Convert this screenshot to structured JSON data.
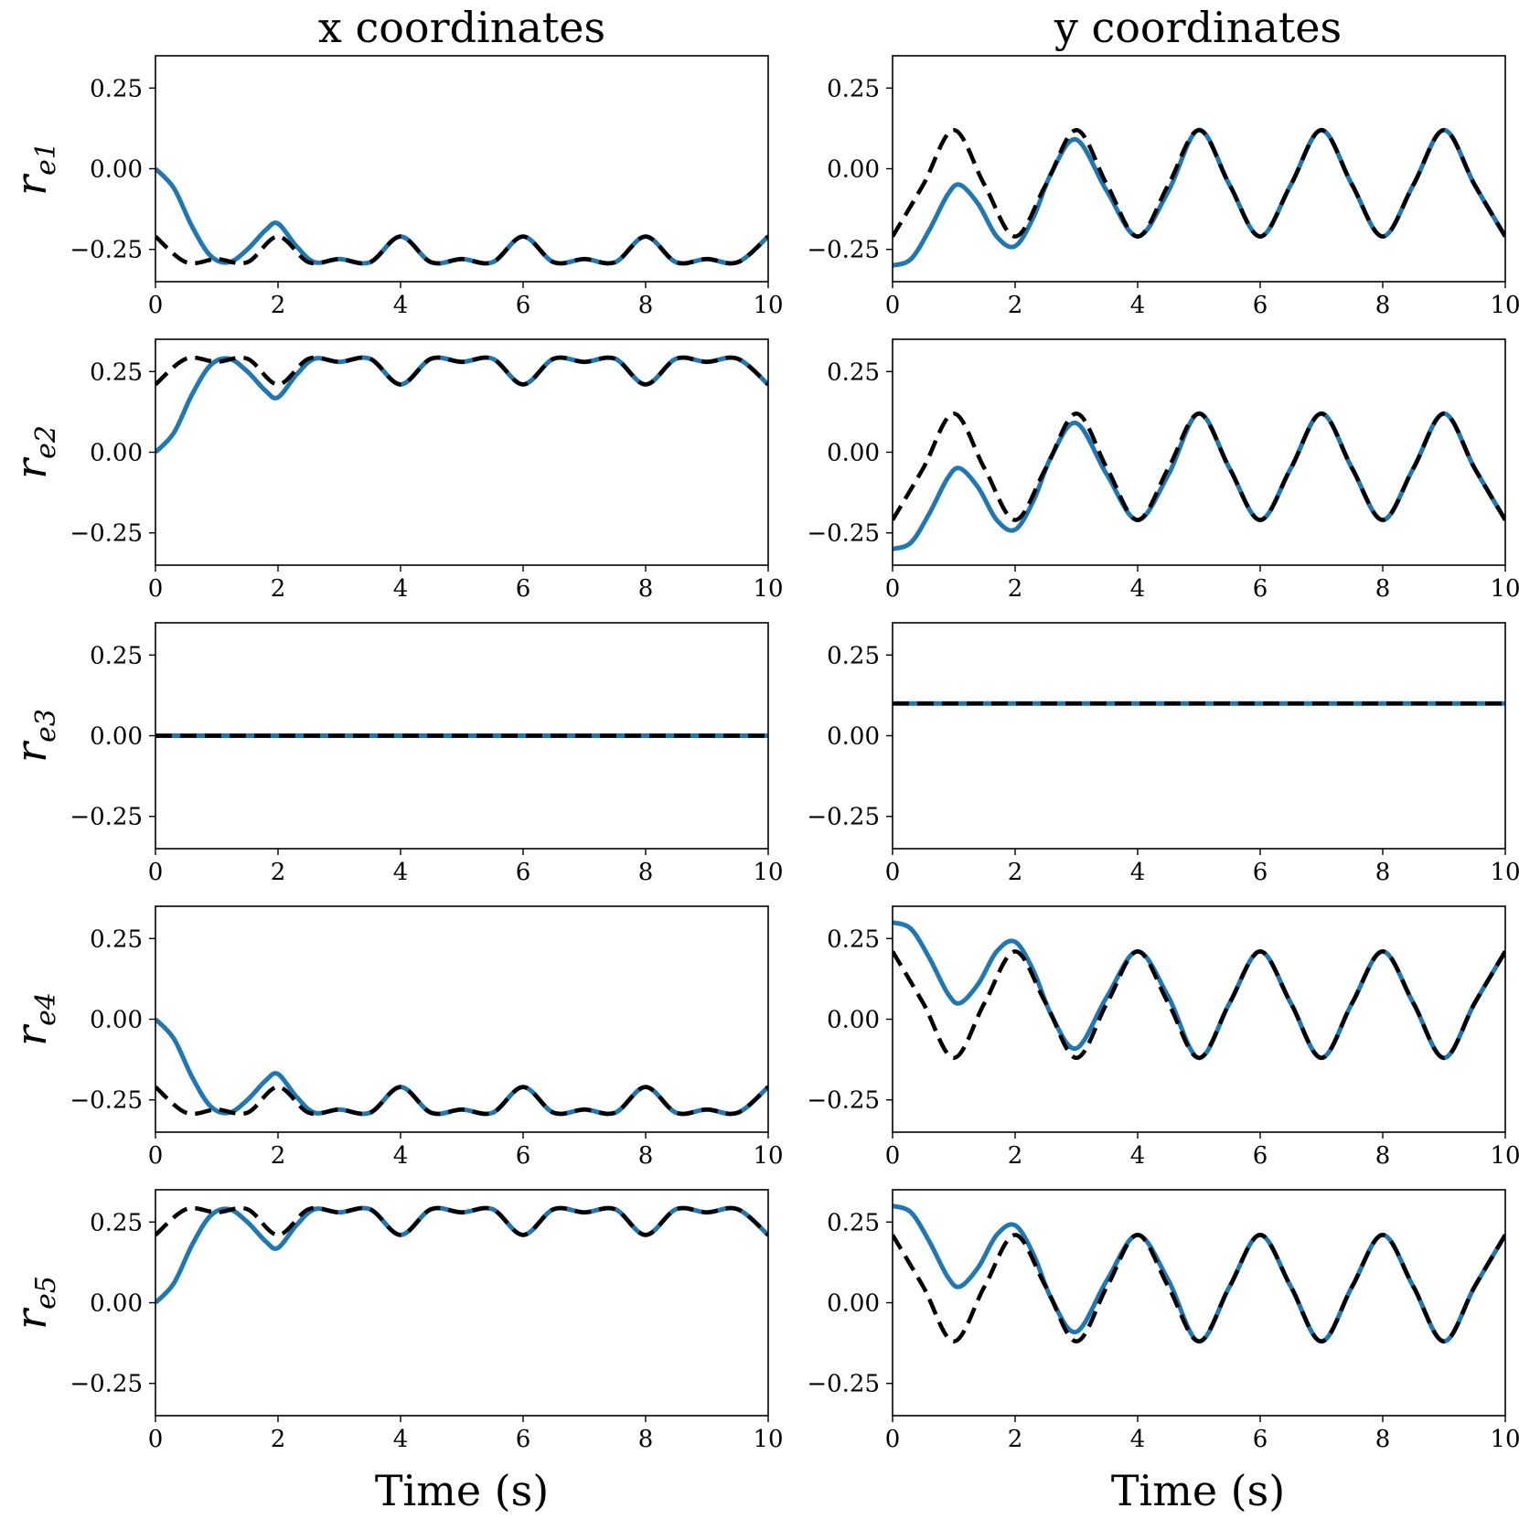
{
  "figure": {
    "column_titles": [
      "x coordinates",
      "y coordinates"
    ],
    "xlabel": "Time (s)",
    "row_labels": [
      {
        "base": "r",
        "sub": "e1"
      },
      {
        "base": "r",
        "sub": "e2"
      },
      {
        "base": "r",
        "sub": "e3"
      },
      {
        "base": "r",
        "sub": "e4"
      },
      {
        "base": "r",
        "sub": "e5"
      }
    ],
    "colors": {
      "actual": "#1f77b4",
      "reference": "#000000"
    }
  },
  "chart_data": {
    "type": "line",
    "xlim": [
      0,
      10
    ],
    "ylim": [
      -0.35,
      0.35
    ],
    "xticks": [
      0,
      2,
      4,
      6,
      8,
      10
    ],
    "yticks": [
      0.25,
      0.0,
      -0.25
    ],
    "ytick_labels": [
      "0.25",
      "0.00",
      "−0.25"
    ],
    "grid": false,
    "subplots": [
      {
        "row": "re1",
        "coord": "x",
        "actual": {
          "x": [
            0,
            0.3,
            0.6,
            0.9,
            1.2,
            1.5,
            1.8,
            2.0,
            2.3,
            2.6,
            3.0,
            3.5,
            4.0,
            4.5,
            5.0,
            5.5,
            6.0,
            6.5,
            7.0,
            7.5,
            8.0,
            8.5,
            9.0,
            9.5,
            10
          ],
          "y": [
            0.0,
            -0.06,
            -0.18,
            -0.27,
            -0.29,
            -0.25,
            -0.19,
            -0.17,
            -0.24,
            -0.29,
            -0.28,
            -0.29,
            -0.21,
            -0.29,
            -0.28,
            -0.29,
            -0.21,
            -0.29,
            -0.28,
            -0.29,
            -0.21,
            -0.29,
            -0.28,
            -0.29,
            -0.21
          ]
        },
        "reference": {
          "x": [
            0,
            0.5,
            1.0,
            1.5,
            2.0,
            2.5,
            3.0,
            3.5,
            4.0,
            4.5,
            5.0,
            5.5,
            6.0,
            6.5,
            7.0,
            7.5,
            8.0,
            8.5,
            9.0,
            9.5,
            10
          ],
          "y": [
            -0.21,
            -0.29,
            -0.28,
            -0.29,
            -0.21,
            -0.29,
            -0.28,
            -0.29,
            -0.21,
            -0.29,
            -0.28,
            -0.29,
            -0.21,
            -0.29,
            -0.28,
            -0.29,
            -0.21,
            -0.29,
            -0.28,
            -0.29,
            -0.21
          ]
        }
      },
      {
        "row": "re1",
        "coord": "y",
        "actual": {
          "x": [
            0,
            0.3,
            0.6,
            0.9,
            1.1,
            1.4,
            1.7,
            2.0,
            2.3,
            2.6,
            3.0,
            3.5,
            4.0,
            4.5,
            5.0,
            5.5,
            6.0,
            6.5,
            7.0,
            7.5,
            8.0,
            8.5,
            9.0,
            9.5,
            10
          ],
          "y": [
            -0.3,
            -0.28,
            -0.19,
            -0.08,
            -0.05,
            -0.11,
            -0.21,
            -0.24,
            -0.15,
            -0.01,
            0.09,
            -0.07,
            -0.21,
            -0.07,
            0.12,
            -0.05,
            -0.21,
            -0.05,
            0.12,
            -0.05,
            -0.21,
            -0.05,
            0.12,
            -0.05,
            -0.21
          ]
        },
        "reference": {
          "x": [
            0,
            0.5,
            1.0,
            1.5,
            2.0,
            2.5,
            3.0,
            3.5,
            4.0,
            4.5,
            5.0,
            5.5,
            6.0,
            6.5,
            7.0,
            7.5,
            8.0,
            8.5,
            9.0,
            9.5,
            10
          ],
          "y": [
            -0.21,
            -0.05,
            0.12,
            -0.05,
            -0.21,
            -0.05,
            0.12,
            -0.05,
            -0.21,
            -0.05,
            0.12,
            -0.05,
            -0.21,
            -0.05,
            0.12,
            -0.05,
            -0.21,
            -0.05,
            0.12,
            -0.05,
            -0.21
          ]
        }
      },
      {
        "row": "re2",
        "coord": "x",
        "actual": {
          "x": [
            0,
            0.3,
            0.6,
            0.9,
            1.2,
            1.5,
            1.8,
            2.0,
            2.3,
            2.6,
            3.0,
            3.5,
            4.0,
            4.5,
            5.0,
            5.5,
            6.0,
            6.5,
            7.0,
            7.5,
            8.0,
            8.5,
            9.0,
            9.5,
            10
          ],
          "y": [
            0.0,
            0.06,
            0.18,
            0.27,
            0.29,
            0.25,
            0.19,
            0.17,
            0.24,
            0.29,
            0.28,
            0.29,
            0.21,
            0.29,
            0.28,
            0.29,
            0.21,
            0.29,
            0.28,
            0.29,
            0.21,
            0.29,
            0.28,
            0.29,
            0.21
          ]
        },
        "reference": {
          "x": [
            0,
            0.5,
            1.0,
            1.5,
            2.0,
            2.5,
            3.0,
            3.5,
            4.0,
            4.5,
            5.0,
            5.5,
            6.0,
            6.5,
            7.0,
            7.5,
            8.0,
            8.5,
            9.0,
            9.5,
            10
          ],
          "y": [
            0.21,
            0.29,
            0.28,
            0.29,
            0.21,
            0.29,
            0.28,
            0.29,
            0.21,
            0.29,
            0.28,
            0.29,
            0.21,
            0.29,
            0.28,
            0.29,
            0.21,
            0.29,
            0.28,
            0.29,
            0.21
          ]
        }
      },
      {
        "row": "re2",
        "coord": "y",
        "actual": {
          "x": [
            0,
            0.3,
            0.6,
            0.9,
            1.1,
            1.4,
            1.7,
            2.0,
            2.3,
            2.6,
            3.0,
            3.5,
            4.0,
            4.5,
            5.0,
            5.5,
            6.0,
            6.5,
            7.0,
            7.5,
            8.0,
            8.5,
            9.0,
            9.5,
            10
          ],
          "y": [
            -0.3,
            -0.28,
            -0.19,
            -0.08,
            -0.05,
            -0.11,
            -0.21,
            -0.24,
            -0.15,
            -0.01,
            0.09,
            -0.07,
            -0.21,
            -0.07,
            0.12,
            -0.05,
            -0.21,
            -0.05,
            0.12,
            -0.05,
            -0.21,
            -0.05,
            0.12,
            -0.05,
            -0.21
          ]
        },
        "reference": {
          "x": [
            0,
            0.5,
            1.0,
            1.5,
            2.0,
            2.5,
            3.0,
            3.5,
            4.0,
            4.5,
            5.0,
            5.5,
            6.0,
            6.5,
            7.0,
            7.5,
            8.0,
            8.5,
            9.0,
            9.5,
            10
          ],
          "y": [
            -0.21,
            -0.05,
            0.12,
            -0.05,
            -0.21,
            -0.05,
            0.12,
            -0.05,
            -0.21,
            -0.05,
            0.12,
            -0.05,
            -0.21,
            -0.05,
            0.12,
            -0.05,
            -0.21,
            -0.05,
            0.12,
            -0.05,
            -0.21
          ]
        }
      },
      {
        "row": "re3",
        "coord": "x",
        "actual": {
          "x": [
            0,
            10
          ],
          "y": [
            0.0,
            0.0
          ]
        },
        "reference": {
          "x": [
            0,
            10
          ],
          "y": [
            0.0,
            0.0
          ]
        }
      },
      {
        "row": "re3",
        "coord": "y",
        "actual": {
          "x": [
            0,
            10
          ],
          "y": [
            0.1,
            0.1
          ]
        },
        "reference": {
          "x": [
            0,
            10
          ],
          "y": [
            0.1,
            0.1
          ]
        }
      },
      {
        "row": "re4",
        "coord": "x",
        "actual": {
          "x": [
            0,
            0.3,
            0.6,
            0.9,
            1.2,
            1.5,
            1.8,
            2.0,
            2.3,
            2.6,
            3.0,
            3.5,
            4.0,
            4.5,
            5.0,
            5.5,
            6.0,
            6.5,
            7.0,
            7.5,
            8.0,
            8.5,
            9.0,
            9.5,
            10
          ],
          "y": [
            0.0,
            -0.06,
            -0.18,
            -0.27,
            -0.29,
            -0.25,
            -0.19,
            -0.17,
            -0.24,
            -0.29,
            -0.28,
            -0.29,
            -0.21,
            -0.29,
            -0.28,
            -0.29,
            -0.21,
            -0.29,
            -0.28,
            -0.29,
            -0.21,
            -0.29,
            -0.28,
            -0.29,
            -0.21
          ]
        },
        "reference": {
          "x": [
            0,
            0.5,
            1.0,
            1.5,
            2.0,
            2.5,
            3.0,
            3.5,
            4.0,
            4.5,
            5.0,
            5.5,
            6.0,
            6.5,
            7.0,
            7.5,
            8.0,
            8.5,
            9.0,
            9.5,
            10
          ],
          "y": [
            -0.21,
            -0.29,
            -0.28,
            -0.29,
            -0.21,
            -0.29,
            -0.28,
            -0.29,
            -0.21,
            -0.29,
            -0.28,
            -0.29,
            -0.21,
            -0.29,
            -0.28,
            -0.29,
            -0.21,
            -0.29,
            -0.28,
            -0.29,
            -0.21
          ]
        }
      },
      {
        "row": "re4",
        "coord": "y",
        "actual": {
          "x": [
            0,
            0.3,
            0.6,
            0.9,
            1.1,
            1.4,
            1.7,
            2.0,
            2.3,
            2.6,
            3.0,
            3.5,
            4.0,
            4.5,
            5.0,
            5.5,
            6.0,
            6.5,
            7.0,
            7.5,
            8.0,
            8.5,
            9.0,
            9.5,
            10
          ],
          "y": [
            0.3,
            0.28,
            0.19,
            0.08,
            0.05,
            0.11,
            0.21,
            0.24,
            0.15,
            0.01,
            -0.09,
            0.07,
            0.21,
            0.07,
            -0.12,
            0.05,
            0.21,
            0.05,
            -0.12,
            0.05,
            0.21,
            0.05,
            -0.12,
            0.05,
            0.21
          ]
        },
        "reference": {
          "x": [
            0,
            0.5,
            1.0,
            1.5,
            2.0,
            2.5,
            3.0,
            3.5,
            4.0,
            4.5,
            5.0,
            5.5,
            6.0,
            6.5,
            7.0,
            7.5,
            8.0,
            8.5,
            9.0,
            9.5,
            10
          ],
          "y": [
            0.21,
            0.05,
            -0.12,
            0.05,
            0.21,
            0.05,
            -0.12,
            0.05,
            0.21,
            0.05,
            -0.12,
            0.05,
            0.21,
            0.05,
            -0.12,
            0.05,
            0.21,
            0.05,
            -0.12,
            0.05,
            0.21
          ]
        }
      },
      {
        "row": "re5",
        "coord": "x",
        "actual": {
          "x": [
            0,
            0.3,
            0.6,
            0.9,
            1.2,
            1.5,
            1.8,
            2.0,
            2.3,
            2.6,
            3.0,
            3.5,
            4.0,
            4.5,
            5.0,
            5.5,
            6.0,
            6.5,
            7.0,
            7.5,
            8.0,
            8.5,
            9.0,
            9.5,
            10
          ],
          "y": [
            0.0,
            0.06,
            0.18,
            0.27,
            0.29,
            0.25,
            0.19,
            0.17,
            0.24,
            0.29,
            0.28,
            0.29,
            0.21,
            0.29,
            0.28,
            0.29,
            0.21,
            0.29,
            0.28,
            0.29,
            0.21,
            0.29,
            0.28,
            0.29,
            0.21
          ]
        },
        "reference": {
          "x": [
            0,
            0.5,
            1.0,
            1.5,
            2.0,
            2.5,
            3.0,
            3.5,
            4.0,
            4.5,
            5.0,
            5.5,
            6.0,
            6.5,
            7.0,
            7.5,
            8.0,
            8.5,
            9.0,
            9.5,
            10
          ],
          "y": [
            0.21,
            0.29,
            0.28,
            0.29,
            0.21,
            0.29,
            0.28,
            0.29,
            0.21,
            0.29,
            0.28,
            0.29,
            0.21,
            0.29,
            0.28,
            0.29,
            0.21,
            0.29,
            0.28,
            0.29,
            0.21
          ]
        }
      },
      {
        "row": "re5",
        "coord": "y",
        "actual": {
          "x": [
            0,
            0.3,
            0.6,
            0.9,
            1.1,
            1.4,
            1.7,
            2.0,
            2.3,
            2.6,
            3.0,
            3.5,
            4.0,
            4.5,
            5.0,
            5.5,
            6.0,
            6.5,
            7.0,
            7.5,
            8.0,
            8.5,
            9.0,
            9.5,
            10
          ],
          "y": [
            0.3,
            0.28,
            0.19,
            0.08,
            0.05,
            0.11,
            0.21,
            0.24,
            0.15,
            0.01,
            -0.09,
            0.07,
            0.21,
            0.07,
            -0.12,
            0.05,
            0.21,
            0.05,
            -0.12,
            0.05,
            0.21,
            0.05,
            -0.12,
            0.05,
            0.21
          ]
        },
        "reference": {
          "x": [
            0,
            0.5,
            1.0,
            1.5,
            2.0,
            2.5,
            3.0,
            3.5,
            4.0,
            4.5,
            5.0,
            5.5,
            6.0,
            6.5,
            7.0,
            7.5,
            8.0,
            8.5,
            9.0,
            9.5,
            10
          ],
          "y": [
            0.21,
            0.05,
            -0.12,
            0.05,
            0.21,
            0.05,
            -0.12,
            0.05,
            0.21,
            0.05,
            -0.12,
            0.05,
            0.21,
            0.05,
            -0.12,
            0.05,
            0.21,
            0.05,
            -0.12,
            0.05,
            0.21
          ]
        }
      }
    ]
  }
}
